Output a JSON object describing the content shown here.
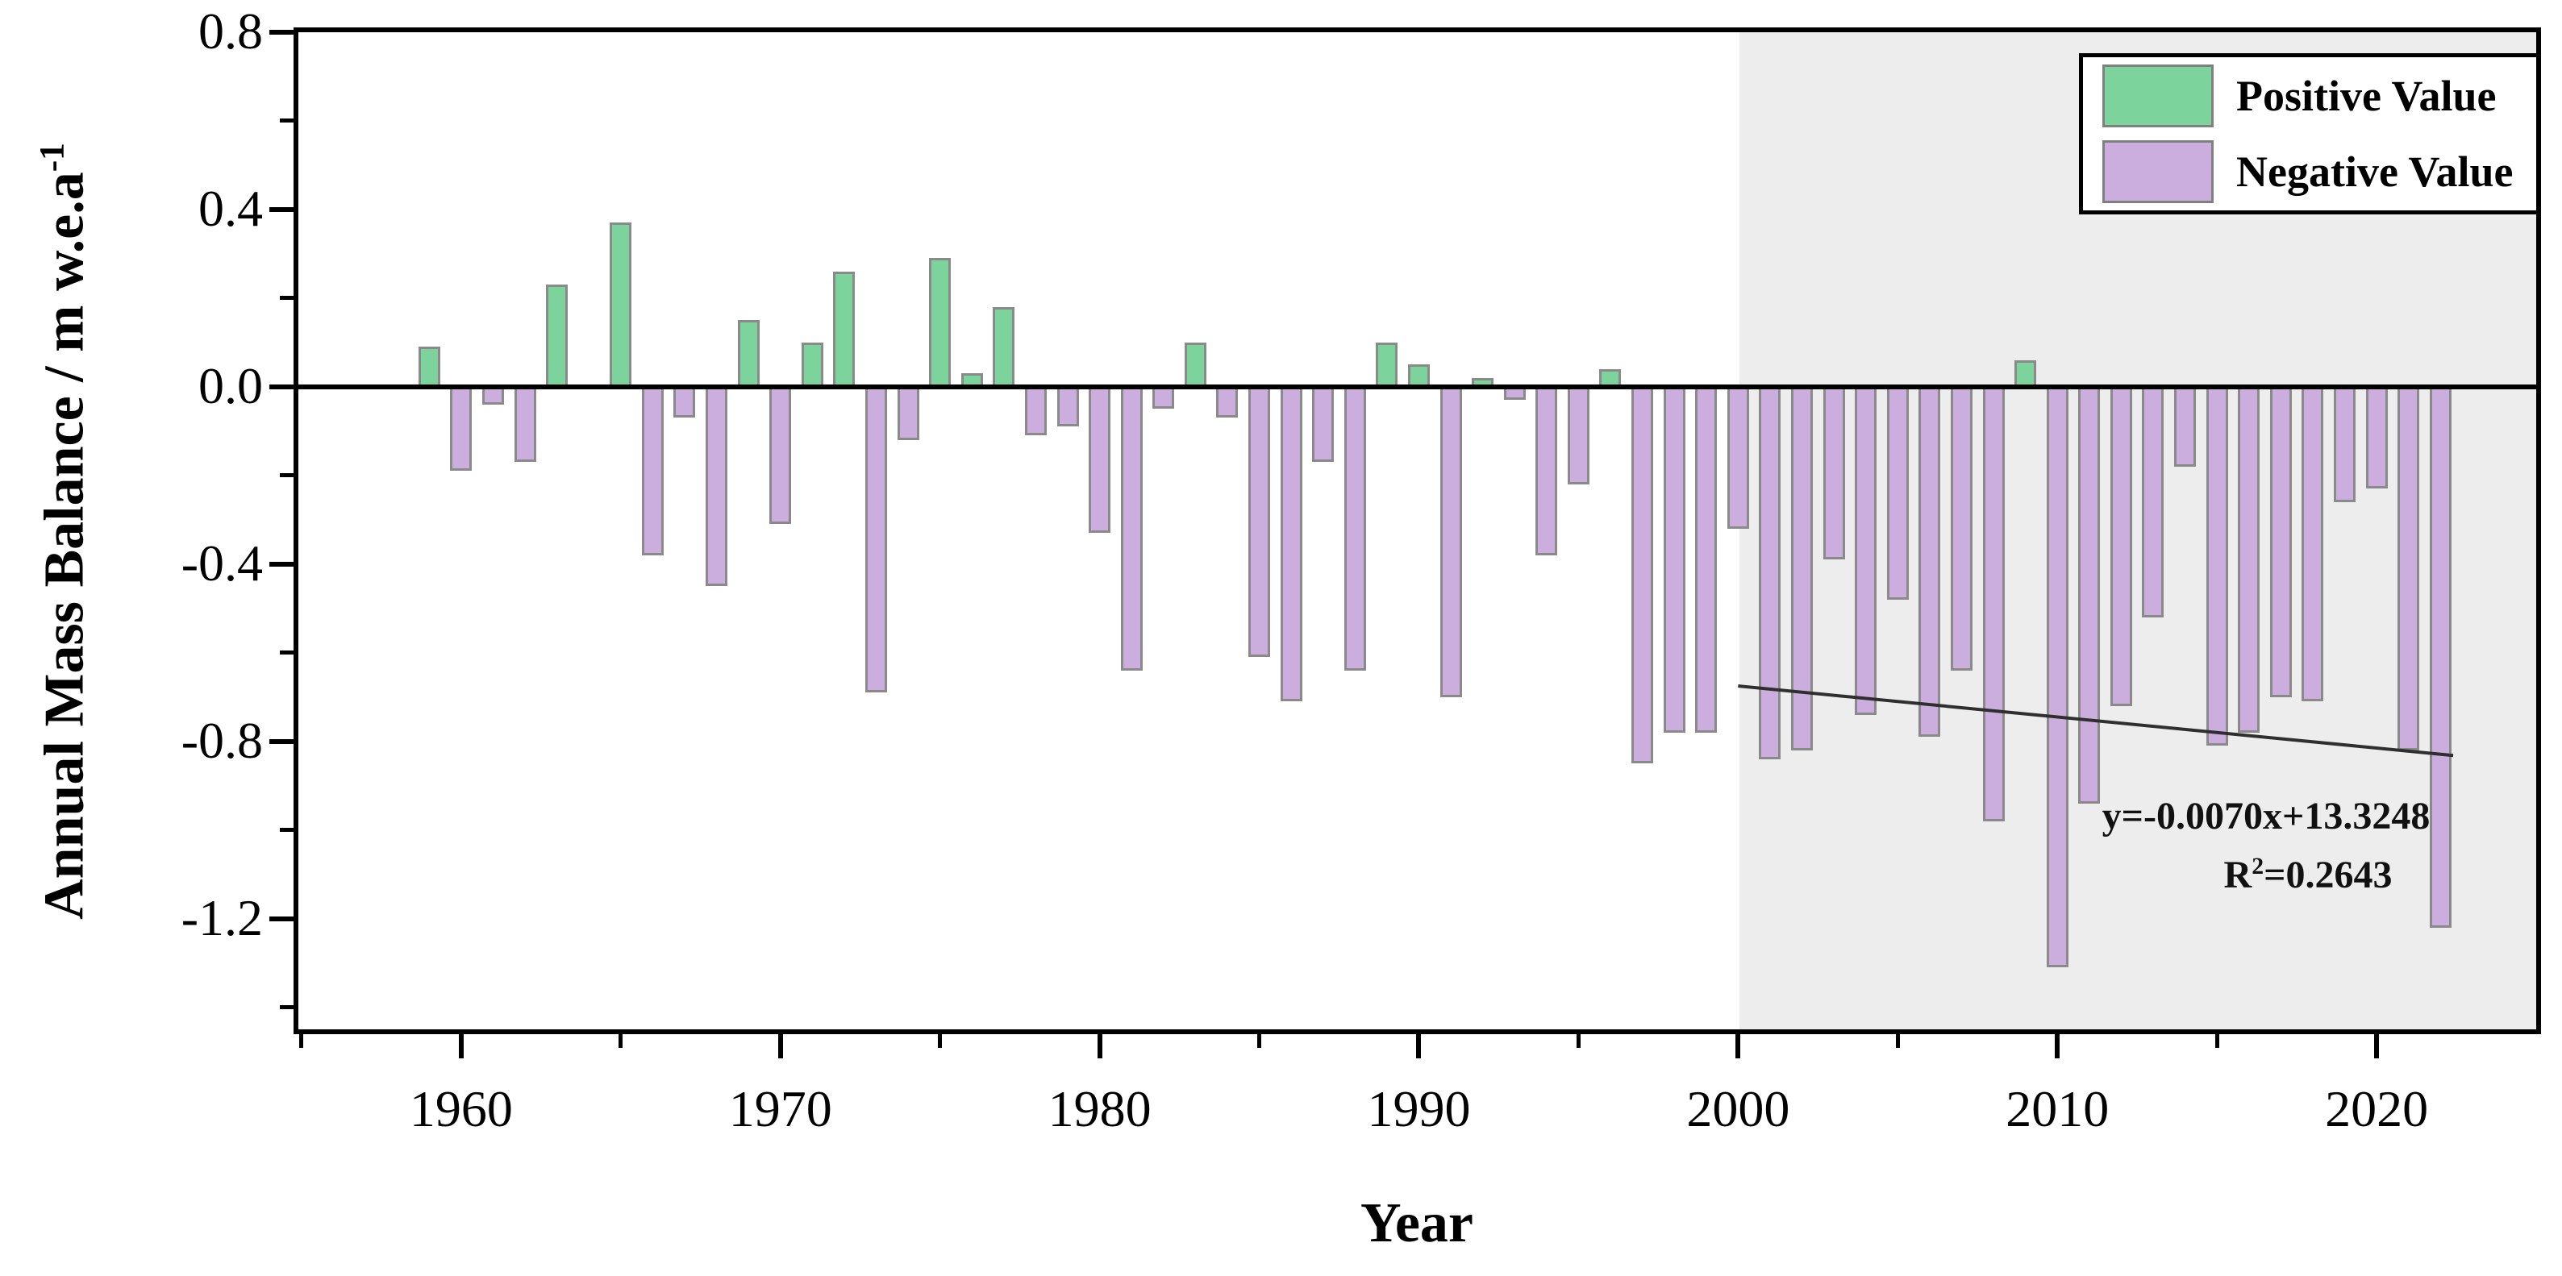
{
  "ylabel": {
    "main": "Annual Mass Balance / m w.e.a",
    "sup": "-1"
  },
  "xlabel": "Year",
  "legend": {
    "items": [
      {
        "label": "Positive Value",
        "color": "#7cd49c"
      },
      {
        "label": "Negative Value",
        "color": "#cbaede"
      }
    ]
  },
  "annotation": {
    "line1": "y=-0.0070x+13.3248",
    "r_base": "R",
    "r_sup": "2",
    "r_rest": "=0.2643"
  },
  "chart_data": {
    "type": "bar",
    "title": "",
    "xlabel": "Year",
    "ylabel": "Annual Mass Balance / m w.e.a^-1",
    "xlim": [
      1954.9,
      2025.0
    ],
    "ylim": [
      -1.45,
      0.8
    ],
    "grid": false,
    "legend_position": "top-right",
    "x_major_ticks": [
      1960,
      1970,
      1980,
      1990,
      2000,
      2010,
      2020
    ],
    "x_minor_ticks": [
      1955,
      1965,
      1975,
      1985,
      1995,
      2005,
      2015
    ],
    "y_major_ticks": [
      0.8,
      0.4,
      0.0,
      -0.4,
      -0.8,
      -1.2
    ],
    "y_minor_ticks": [
      0.6,
      0.2,
      -0.2,
      -0.6,
      -1.0,
      -1.4
    ],
    "positive_color": "#7cd49c",
    "negative_color": "#cbaede",
    "bar_border_color": "#8a8a8a",
    "shaded_region": {
      "x_start": 2000.05,
      "x_end": 2025.0,
      "color": "#ededed"
    },
    "trend": {
      "slope": -0.007,
      "intercept": 13.3248,
      "x_start": 2000.0,
      "x_end": 2022.4,
      "color": "#2f2f2f",
      "equation_label": "y=-0.0070x+13.3248",
      "r2_label": "R2=0.2643"
    },
    "series": [
      {
        "name": "Annual mass balance",
        "points": [
          [
            1959,
            0.09
          ],
          [
            1960,
            -0.19
          ],
          [
            1961,
            -0.04
          ],
          [
            1962,
            -0.17
          ],
          [
            1963,
            0.23
          ],
          [
            1964,
            null
          ],
          [
            1965,
            0.37
          ],
          [
            1966,
            -0.38
          ],
          [
            1967,
            -0.07
          ],
          [
            1968,
            -0.45
          ],
          [
            1969,
            0.15
          ],
          [
            1970,
            -0.31
          ],
          [
            1971,
            0.1
          ],
          [
            1972,
            0.26
          ],
          [
            1973,
            -0.69
          ],
          [
            1974,
            -0.12
          ],
          [
            1975,
            0.29
          ],
          [
            1976,
            0.03
          ],
          [
            1977,
            0.18
          ],
          [
            1978,
            -0.11
          ],
          [
            1979,
            -0.09
          ],
          [
            1980,
            -0.33
          ],
          [
            1981,
            -0.64
          ],
          [
            1982,
            -0.05
          ],
          [
            1983,
            0.1
          ],
          [
            1984,
            -0.07
          ],
          [
            1985,
            -0.61
          ],
          [
            1986,
            -0.71
          ],
          [
            1987,
            -0.17
          ],
          [
            1988,
            -0.64
          ],
          [
            1989,
            0.1
          ],
          [
            1990,
            0.05
          ],
          [
            1991,
            -0.7
          ],
          [
            1992,
            0.02
          ],
          [
            1993,
            -0.03
          ],
          [
            1994,
            -0.38
          ],
          [
            1995,
            -0.22
          ],
          [
            1996,
            0.04
          ],
          [
            1997,
            -0.85
          ],
          [
            1998,
            -0.78
          ],
          [
            1999,
            -0.78
          ],
          [
            2000,
            -0.32
          ],
          [
            2001,
            -0.84
          ],
          [
            2002,
            -0.82
          ],
          [
            2003,
            -0.39
          ],
          [
            2004,
            -0.74
          ],
          [
            2005,
            -0.48
          ],
          [
            2006,
            -0.79
          ],
          [
            2007,
            -0.64
          ],
          [
            2008,
            -0.98
          ],
          [
            2009,
            0.06
          ],
          [
            2010,
            -1.31
          ],
          [
            2011,
            -0.94
          ],
          [
            2012,
            -0.72
          ],
          [
            2013,
            -0.52
          ],
          [
            2014,
            -0.18
          ],
          [
            2015,
            -0.81
          ],
          [
            2016,
            -0.78
          ],
          [
            2017,
            -0.7
          ],
          [
            2018,
            -0.71
          ],
          [
            2019,
            -0.26
          ],
          [
            2020,
            -0.23
          ],
          [
            2021,
            -0.82
          ],
          [
            2022,
            -1.22
          ]
        ]
      }
    ]
  }
}
